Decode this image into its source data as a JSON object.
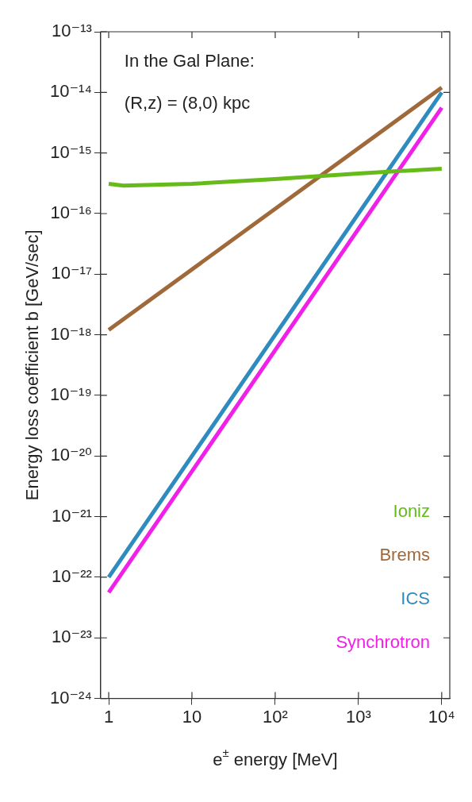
{
  "chart_data": {
    "type": "line",
    "xlabel": "e$^{±}$ energy [MeV]",
    "ylabel": "Energy loss coefficient b [GeV/sec]",
    "annotations": [
      "In the Gal Plane:",
      "(R,z) = (8,0) kpc"
    ],
    "log": "xy",
    "grid": false,
    "legend": "bottom right",
    "marker": "none",
    "line_style": "solid",
    "xlim": [
      0.8,
      12500
    ],
    "ylim": [
      1e-24,
      1e-13
    ],
    "xticks": [
      1,
      10,
      {
        "value": 100,
        "label": "10²"
      },
      {
        "value": 1000,
        "label": "10³"
      },
      {
        "value": 10000,
        "label": "10⁴"
      }
    ],
    "yticks": [
      {
        "value": 1e-24,
        "label": "10⁻²⁴"
      },
      {
        "value": 1e-23,
        "label": "10⁻²³"
      },
      {
        "value": 1e-22,
        "label": "10⁻²²"
      },
      {
        "value": 1e-21,
        "label": "10⁻²¹"
      },
      {
        "value": 1e-20,
        "label": "10⁻²⁰"
      },
      {
        "value": 1e-19,
        "label": "10⁻¹⁹"
      },
      {
        "value": 1e-18,
        "label": "10⁻¹⁸"
      },
      {
        "value": 1e-17,
        "label": "10⁻¹⁷"
      },
      {
        "value": 1e-16,
        "label": "10⁻¹⁶"
      },
      {
        "value": 1e-15,
        "label": "10⁻¹⁵"
      },
      {
        "value": 1e-14,
        "label": "10⁻¹⁴"
      },
      {
        "value": 1e-13,
        "label": "10⁻¹³"
      }
    ],
    "series": [
      {
        "name": "Ioniz",
        "color": "#66bb1a",
        "x": [
          1,
          1.5,
          10,
          100,
          1000,
          10000
        ],
        "values": [
          3.1e-16,
          2.9e-16,
          3.1e-16,
          3.7e-16,
          4.6e-16,
          5.5e-16
        ]
      },
      {
        "name": "Brems",
        "color": "#a0693a",
        "x": [
          1,
          10000
        ],
        "values": [
          1.2e-18,
          1.2e-14
        ]
      },
      {
        "name": "ICS",
        "color": "#2e8bc0",
        "x": [
          1,
          10000
        ],
        "values": [
          1e-22,
          1e-14
        ]
      },
      {
        "name": "Synchrotron",
        "color": "#f020e8",
        "x": [
          1,
          10000
        ],
        "values": [
          5.6e-23,
          5.6e-15
        ]
      }
    ]
  }
}
